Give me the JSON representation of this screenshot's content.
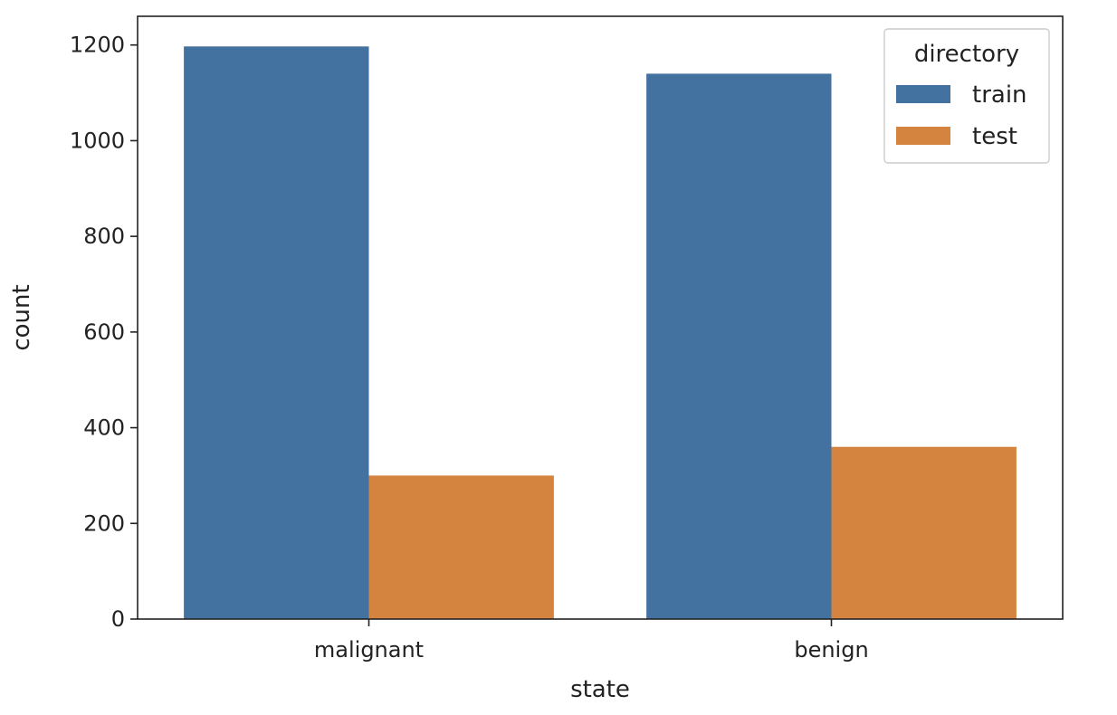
{
  "chart_data": {
    "type": "bar",
    "title": "",
    "xlabel": "state",
    "ylabel": "count",
    "categories": [
      "malignant",
      "benign"
    ],
    "series": [
      {
        "name": "train",
        "values": [
          1197,
          1140
        ],
        "color": "#4472a0"
      },
      {
        "name": "test",
        "values": [
          300,
          360
        ],
        "color": "#d4843f"
      }
    ],
    "ylim": [
      0,
      1260
    ],
    "yticks": [
      0,
      200,
      400,
      600,
      800,
      1000,
      1200
    ],
    "grid": false,
    "legend": {
      "title": "directory",
      "placement": "top-right"
    }
  }
}
